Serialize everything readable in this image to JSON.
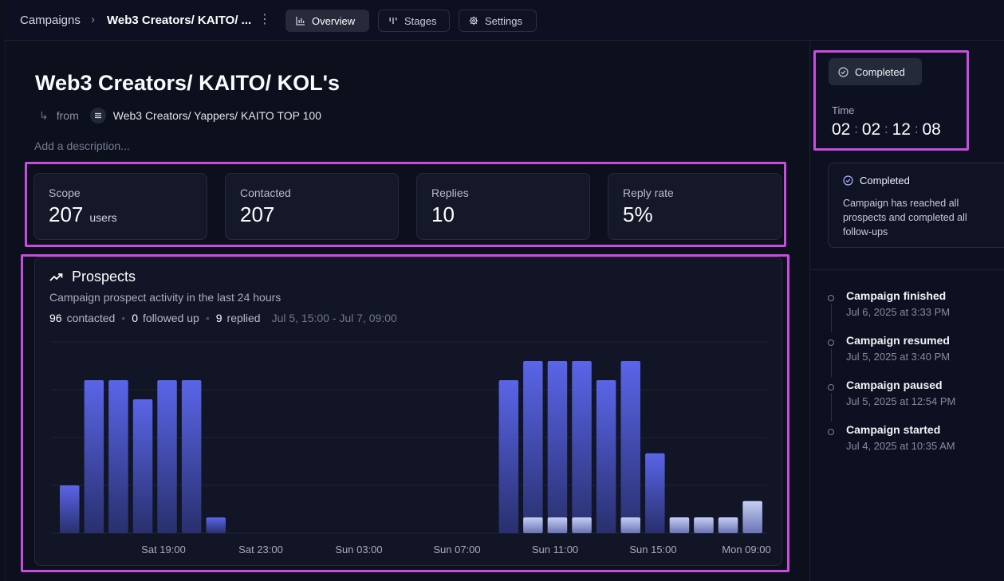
{
  "topbar": {
    "breadcrumb_root": "Campaigns",
    "breadcrumb_sep": "›",
    "breadcrumb_current": "Web3 Creators/ KAITO/ ...",
    "tabs": [
      {
        "label": "Overview",
        "icon": "bar-chart-icon",
        "active": true
      },
      {
        "label": "Stages",
        "icon": "stages-icon",
        "active": false
      },
      {
        "label": "Settings",
        "icon": "gear-icon",
        "active": false
      }
    ]
  },
  "campaign": {
    "title": "Web3 Creators/ KAITO/ KOL's",
    "from_label": "from",
    "from_name": "Web3 Creators/ Yappers/ KAITO TOP 100",
    "description_placeholder": "Add a description..."
  },
  "stats": [
    {
      "label": "Scope",
      "value": "207",
      "unit": "users"
    },
    {
      "label": "Contacted",
      "value": "207",
      "unit": ""
    },
    {
      "label": "Replies",
      "value": "10",
      "unit": ""
    },
    {
      "label": "Reply rate",
      "value": "5%",
      "unit": ""
    }
  ],
  "prospects": {
    "title": "Prospects",
    "subtitle": "Campaign prospect activity in the last 24 hours",
    "contacted_count": "96",
    "contacted_label": "contacted",
    "followed_count": "0",
    "followed_label": "followed up",
    "replied_count": "9",
    "replied_label": "replied",
    "range": "Jul 5, 15:00 - Jul 7, 09:00"
  },
  "chart_data": {
    "type": "bar",
    "x_tick_labels": [
      "Sat 19:00",
      "Sat 23:00",
      "Sun 03:00",
      "Sun 07:00",
      "Sun 11:00",
      "Sun 15:00",
      "Mon 09:00"
    ],
    "ylim": [
      0,
      4
    ],
    "grid": true,
    "series": [
      {
        "values": [
          1,
          3.2,
          3.2,
          2.8,
          3.2,
          3.2,
          0.33,
          0,
          0,
          0,
          0,
          0,
          0,
          0,
          0,
          0,
          0,
          0,
          3.2,
          3.6,
          3.6,
          3.6,
          3.2,
          3.6,
          1.67,
          0.33,
          0.33,
          0.33,
          0.67
        ]
      },
      {
        "values": [
          0,
          0,
          0,
          0,
          0,
          0,
          0,
          0,
          0,
          0,
          0,
          0,
          0,
          0,
          0,
          0,
          0,
          0,
          0,
          0.33,
          0.33,
          0.33,
          0,
          0.33,
          0,
          0.33,
          0.33,
          0.33,
          0.67
        ]
      }
    ],
    "colors": {
      "primary": "#5a65e8",
      "primary_dark": "#28306e",
      "secondary": "#c6cdf3",
      "secondary_dark": "#6a74b5",
      "grid": "#1f2436"
    }
  },
  "status": {
    "badge": "Completed",
    "time_label": "Time",
    "timer": [
      "02",
      "02",
      "12",
      "08"
    ],
    "card_title": "Completed",
    "card_body": "Campaign has reached all prospects and completed all follow-ups"
  },
  "timeline": [
    {
      "title": "Campaign finished",
      "date": "Jul 6, 2025 at 3:33 PM"
    },
    {
      "title": "Campaign resumed",
      "date": "Jul 5, 2025 at 3:40 PM"
    },
    {
      "title": "Campaign paused",
      "date": "Jul 5, 2025 at 12:54 PM"
    },
    {
      "title": "Campaign started",
      "date": "Jul 4, 2025 at 10:35 AM"
    }
  ],
  "colors": {
    "highlight": "#c94ce0",
    "accent": "#5a65e8",
    "background": "#0c0f1c"
  }
}
